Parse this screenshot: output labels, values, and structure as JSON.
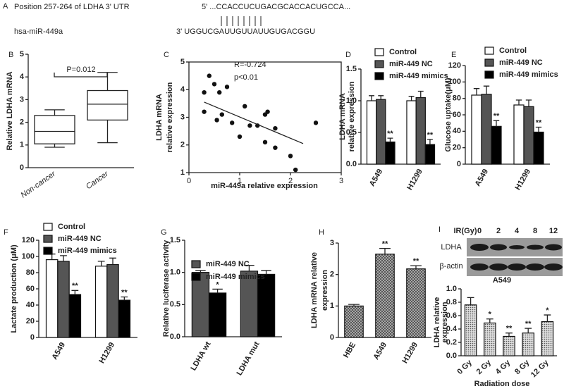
{
  "sequence": {
    "panel": "A",
    "title": "Position 257-264 of LDHA 3' UTR",
    "utr": "5' ...CCACCUCUGACGCACCACUGCCA...",
    "mirna_name": "hsa-miR-449a",
    "mirna": "3'  UGGUCGAUUGUUAUUGUGACGGU"
  },
  "blot": {
    "panel": "I",
    "header": "IR(Gy)",
    "doses": [
      "0",
      "2",
      "4",
      "8",
      "12"
    ],
    "rows": [
      "LDHA",
      "β-actin"
    ]
  },
  "chart_data": [
    {
      "type": "box",
      "panel": "B",
      "ylabel": [
        "Relative LDHA mRNA"
      ],
      "categories": [
        "Non-cancer",
        "Cancer"
      ],
      "boxes": [
        {
          "whislo": 0.9,
          "q1": 1.05,
          "med": 1.6,
          "q3": 2.3,
          "whishi": 2.55
        },
        {
          "whislo": 1.1,
          "q1": 2.1,
          "med": 2.8,
          "q3": 3.4,
          "whishi": 4.2
        }
      ],
      "ylim": [
        0,
        5
      ],
      "yticks": [
        0,
        1,
        2,
        3,
        4,
        5
      ],
      "annotation": "P=0.012"
    },
    {
      "type": "scatter",
      "panel": "C",
      "ylabel": [
        "LDHA mRNA",
        "relative expression"
      ],
      "xlabel": "miR-449a relative expression",
      "x": [
        0.3,
        0.4,
        0.5,
        0.6,
        0.75,
        0.3,
        0.55,
        0.65,
        0.85,
        1.0,
        1.1,
        1.2,
        1.35,
        1.5,
        1.55,
        1.5,
        1.7,
        1.7,
        2.0,
        2.1,
        2.5
      ],
      "y": [
        3.9,
        4.5,
        4.2,
        3.9,
        4.1,
        3.2,
        2.9,
        3.1,
        2.8,
        2.3,
        3.4,
        2.7,
        2.7,
        3.1,
        3.2,
        2.1,
        2.6,
        1.9,
        1.6,
        1.1,
        2.8
      ],
      "trendline": {
        "x": [
          0.3,
          2.25
        ],
        "y": [
          3.55,
          2.05
        ]
      },
      "xlim": [
        0,
        3
      ],
      "xticks": [
        0,
        1,
        2,
        3
      ],
      "ylim": [
        1,
        5
      ],
      "yticks": [
        1,
        2,
        3,
        4,
        5
      ],
      "annotations": [
        "R=-0.724",
        "p<0.01"
      ]
    },
    {
      "type": "bar",
      "panel": "D",
      "ylabel": [
        "LDHA mRNA",
        "relative expression"
      ],
      "categories": [
        "A549",
        "H1299"
      ],
      "series": [
        {
          "name": "Control",
          "color": "#ffffff",
          "values": [
            1.0,
            1.0
          ],
          "errors": [
            0.08,
            0.07
          ]
        },
        {
          "name": "miR-449 NC",
          "color": "#555555",
          "values": [
            1.02,
            1.05
          ],
          "errors": [
            0.06,
            0.1
          ]
        },
        {
          "name": "miR-449 mimics",
          "color": "#000000",
          "values": [
            0.35,
            0.31
          ],
          "errors": [
            0.06,
            0.08
          ],
          "annotations": [
            "**",
            "**"
          ]
        }
      ],
      "ylim": [
        0,
        1.5
      ],
      "yticks": [
        {
          "value": 0,
          "label": "0.0"
        },
        0.5,
        {
          "value": 1,
          "label": "1.0"
        },
        1.5
      ]
    },
    {
      "type": "bar",
      "panel": "E",
      "ylabel": [
        "Glucose uptake(μM)"
      ],
      "categories": [
        "A549",
        "H1299"
      ],
      "series": [
        {
          "name": "Control",
          "color": "#ffffff",
          "values": [
            84,
            72
          ],
          "errors": [
            8,
            6
          ]
        },
        {
          "name": "miR-449 NC",
          "color": "#555555",
          "values": [
            85,
            70
          ],
          "errors": [
            10,
            8
          ]
        },
        {
          "name": "miR-449 mimics",
          "color": "#000000",
          "values": [
            46,
            39
          ],
          "errors": [
            7,
            6
          ],
          "annotations": [
            "**",
            "**"
          ]
        }
      ],
      "ylim": [
        0,
        120
      ],
      "yticks": [
        0,
        20,
        40,
        60,
        80,
        100,
        120
      ]
    },
    {
      "type": "bar",
      "panel": "F",
      "ylabel": [
        "Lactate production (μM)"
      ],
      "categories": [
        "A549",
        "H1299"
      ],
      "series": [
        {
          "name": "Control",
          "color": "#ffffff",
          "values": [
            96,
            88
          ],
          "errors": [
            7,
            6
          ]
        },
        {
          "name": "miR-449 NC",
          "color": "#555555",
          "values": [
            94,
            90
          ],
          "errors": [
            7,
            8
          ]
        },
        {
          "name": "miR-449 mimics",
          "color": "#000000",
          "values": [
            53,
            46
          ],
          "errors": [
            5,
            4
          ],
          "annotations": [
            "**",
            "**"
          ]
        }
      ],
      "ylim": [
        0,
        120
      ],
      "yticks": [
        0,
        20,
        40,
        60,
        80,
        100,
        120
      ]
    },
    {
      "type": "bar",
      "panel": "G",
      "ylabel": [
        "Relative luciferase activity"
      ],
      "categories": [
        "LDHA wt",
        "LDHA mut"
      ],
      "series": [
        {
          "name": "miR-449 NC",
          "color": "#555555",
          "values": [
            1.0,
            1.02
          ],
          "errors": [
            0.03,
            0.09
          ]
        },
        {
          "name": "miR-449 mimics",
          "color": "#000000",
          "values": [
            0.68,
            0.97
          ],
          "errors": [
            0.06,
            0.06
          ],
          "annotations": [
            "*",
            null
          ]
        }
      ],
      "ylim": [
        0,
        1.5
      ],
      "yticks": [
        {
          "value": 0,
          "label": "0.0"
        },
        0.5,
        {
          "value": 1,
          "label": "1.0"
        },
        1.5
      ]
    },
    {
      "type": "bar",
      "panel": "H",
      "ylabel": [
        "LDHA mRNA relative",
        "expression"
      ],
      "categories": [
        "HBE",
        "A549",
        "H1299"
      ],
      "values": [
        1.0,
        2.65,
        2.18
      ],
      "errors": [
        0.05,
        0.18,
        0.1
      ],
      "annotations": [
        null,
        "**",
        "**"
      ],
      "pattern": "crosshatch",
      "ylim": [
        0,
        3
      ],
      "yticks": [
        0,
        1,
        2,
        3
      ]
    },
    {
      "type": "bar",
      "title": "A549",
      "ylabel": [
        "LDHA relative",
        "expression"
      ],
      "xlabel": "Radiation dose",
      "categories": [
        "0 Gy",
        "2 Gy",
        "4 Gy",
        "8 Gy",
        "12 Gy"
      ],
      "values": [
        0.76,
        0.49,
        0.29,
        0.34,
        0.51
      ],
      "errors": [
        0.11,
        0.06,
        0.05,
        0.07,
        0.1
      ],
      "annotations": [
        null,
        "*",
        "**",
        "**",
        "*"
      ],
      "pattern": "dots",
      "ylim": [
        0,
        1.0
      ],
      "yticks": [
        {
          "value": 0,
          "label": "0.0"
        },
        0.2,
        0.4,
        0.6,
        0.8,
        {
          "value": 1,
          "label": "1.0"
        }
      ]
    }
  ]
}
